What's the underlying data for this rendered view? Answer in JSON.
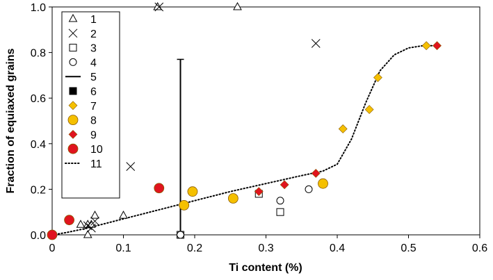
{
  "chart_data": {
    "type": "scatter",
    "xlabel": "Ti content (%)",
    "ylabel": "Fraction of equiaxed grains",
    "xlim": [
      0,
      0.6
    ],
    "ylim": [
      0,
      1.0
    ],
    "x_ticks": [
      "0",
      "0.1",
      "0.2",
      "0.3",
      "0.4",
      "0.5",
      "0.6"
    ],
    "y_ticks": [
      "0.0",
      "0.2",
      "0.4",
      "0.6",
      "0.8",
      "1.0"
    ],
    "grid": false,
    "legend_position": "top-left",
    "series": [
      {
        "name": "1",
        "marker": "triangle-open",
        "color": "#000000",
        "points": [
          [
            0.04,
            0.045
          ],
          [
            0.05,
            0.0
          ],
          [
            0.05,
            0.045
          ],
          [
            0.055,
            0.045
          ],
          [
            0.06,
            0.085
          ],
          [
            0.1,
            0.085
          ],
          [
            0.148,
            1.0
          ],
          [
            0.26,
            1.0
          ]
        ]
      },
      {
        "name": "2",
        "marker": "cross",
        "color": "#000000",
        "points": [
          [
            0.05,
            0.04
          ],
          [
            0.055,
            0.03
          ],
          [
            0.06,
            0.06
          ],
          [
            0.11,
            0.3
          ],
          [
            0.15,
            1.0
          ],
          [
            0.37,
            0.84
          ]
        ]
      },
      {
        "name": "3",
        "marker": "square-open",
        "color": "#000000",
        "points": [
          [
            0.18,
            0.0
          ],
          [
            0.29,
            0.18
          ],
          [
            0.32,
            0.1
          ]
        ]
      },
      {
        "name": "4",
        "marker": "circle-open",
        "color": "#000000",
        "points": [
          [
            0.18,
            0.0
          ],
          [
            0.32,
            0.15
          ],
          [
            0.36,
            0.2
          ]
        ]
      },
      {
        "name": "5",
        "marker": "errorbar",
        "color": "#000000",
        "points": [
          [
            0.18,
            0.0,
            0.77
          ]
        ]
      },
      {
        "name": "6",
        "marker": "square-filled",
        "color": "#000000",
        "points": []
      },
      {
        "name": "7",
        "marker": "diamond-filled",
        "color": "#f5c000",
        "points": [
          [
            0.408,
            0.465
          ],
          [
            0.445,
            0.55
          ],
          [
            0.457,
            0.69
          ],
          [
            0.525,
            0.83
          ]
        ]
      },
      {
        "name": "8",
        "marker": "circle-filled",
        "color": "#f5c000",
        "points": [
          [
            0.185,
            0.13
          ],
          [
            0.197,
            0.19
          ],
          [
            0.254,
            0.16
          ],
          [
            0.38,
            0.225
          ]
        ]
      },
      {
        "name": "9",
        "marker": "diamond-filled",
        "color": "#e0141e",
        "points": [
          [
            0.29,
            0.19
          ],
          [
            0.326,
            0.22
          ],
          [
            0.37,
            0.27
          ],
          [
            0.54,
            0.83
          ]
        ]
      },
      {
        "name": "10",
        "marker": "circle-filled",
        "color": "#e0141e",
        "points": [
          [
            0.0,
            0.0
          ],
          [
            0.024,
            0.065
          ],
          [
            0.15,
            0.205
          ]
        ]
      },
      {
        "name": "11",
        "marker": "dotted-line",
        "color": "#000000",
        "points": [
          [
            0.0,
            0.0
          ],
          [
            0.02,
            0.01
          ],
          [
            0.05,
            0.03
          ],
          [
            0.1,
            0.07
          ],
          [
            0.15,
            0.11
          ],
          [
            0.2,
            0.15
          ],
          [
            0.25,
            0.19
          ],
          [
            0.3,
            0.225
          ],
          [
            0.35,
            0.26
          ],
          [
            0.38,
            0.28
          ],
          [
            0.4,
            0.31
          ],
          [
            0.42,
            0.42
          ],
          [
            0.44,
            0.58
          ],
          [
            0.46,
            0.72
          ],
          [
            0.48,
            0.79
          ],
          [
            0.5,
            0.82
          ],
          [
            0.52,
            0.83
          ],
          [
            0.54,
            0.83
          ]
        ]
      }
    ]
  }
}
